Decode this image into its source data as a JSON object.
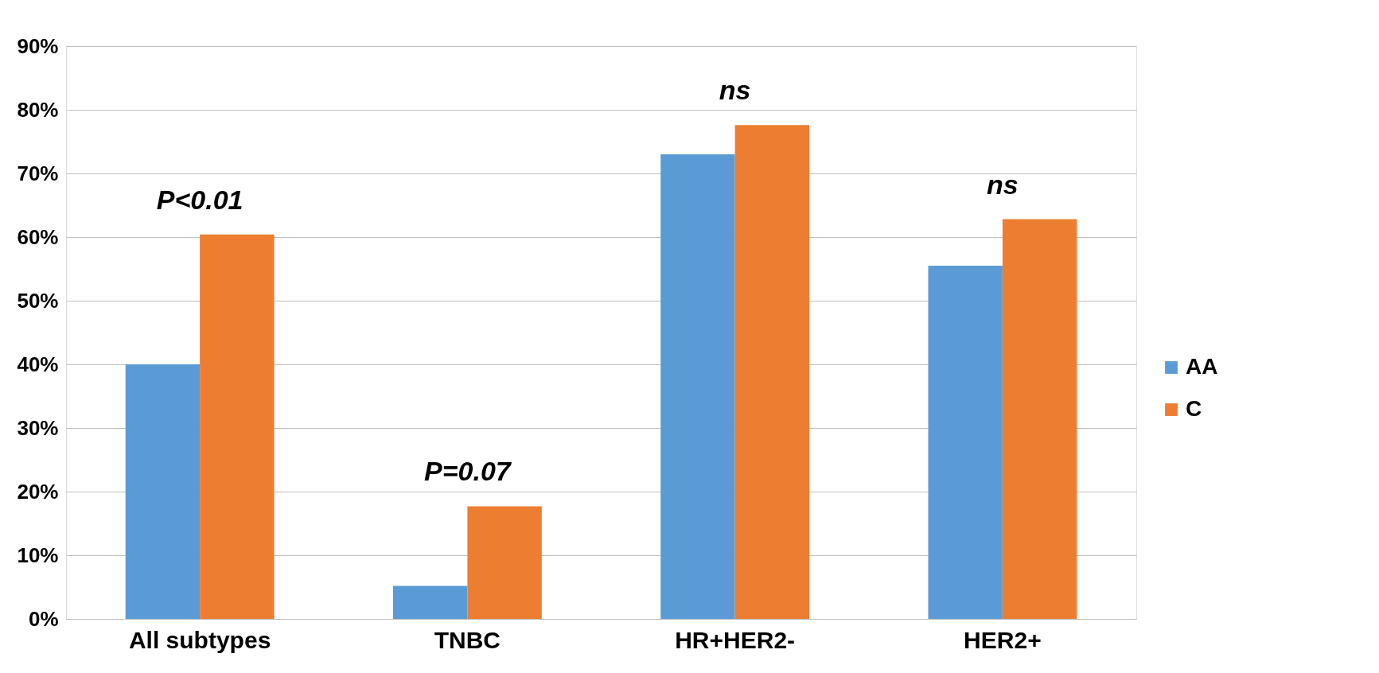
{
  "chart_data": {
    "type": "bar",
    "categories": [
      "All  subtypes",
      "TNBC",
      "HR+HER2-",
      "HER2+"
    ],
    "series": [
      {
        "name": "AA",
        "color": "#5b9bd5",
        "values": [
          40,
          5.2,
          73,
          55.5
        ]
      },
      {
        "name": "C",
        "color": "#ed7d31",
        "values": [
          60.4,
          17.7,
          77.6,
          62.8
        ]
      }
    ],
    "ylim": [
      0,
      90
    ],
    "yticks": [
      {
        "value": 0,
        "label": "0%"
      },
      {
        "value": 10,
        "label": "10%"
      },
      {
        "value": 20,
        "label": "20%"
      },
      {
        "value": 30,
        "label": "30%"
      },
      {
        "value": 40,
        "label": "40%"
      },
      {
        "value": 50,
        "label": "50%"
      },
      {
        "value": 60,
        "label": "60%"
      },
      {
        "value": 70,
        "label": "70%"
      },
      {
        "value": 80,
        "label": "80%"
      },
      {
        "value": 90,
        "label": "90%"
      }
    ],
    "grid": "y",
    "legend": "right",
    "annotations": [
      "P<0.01",
      "P=0.07",
      "ns",
      "ns"
    ]
  }
}
